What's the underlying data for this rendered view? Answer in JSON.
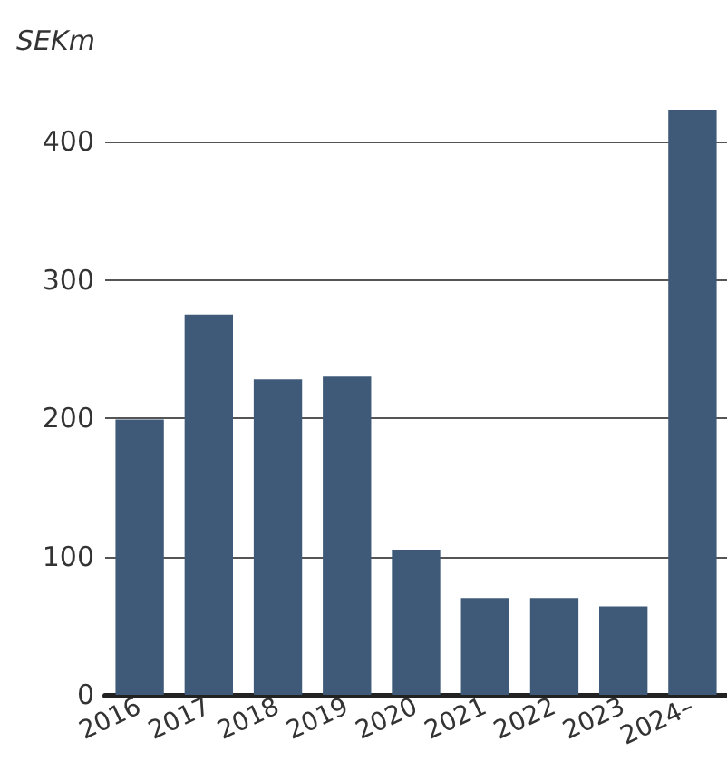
{
  "chart_data": {
    "type": "bar",
    "ylabel": "SEKm",
    "categories": [
      "2016",
      "2017",
      "2018",
      "2019",
      "2020",
      "2021",
      "2022",
      "2023",
      "2024–"
    ],
    "values": [
      199,
      275,
      228,
      230,
      105,
      70,
      70,
      64,
      423
    ],
    "color": "#3f5a78",
    "ylim": [
      0,
      425
    ],
    "yticks": [
      0,
      100,
      200,
      300,
      400
    ],
    "grid": "y"
  }
}
